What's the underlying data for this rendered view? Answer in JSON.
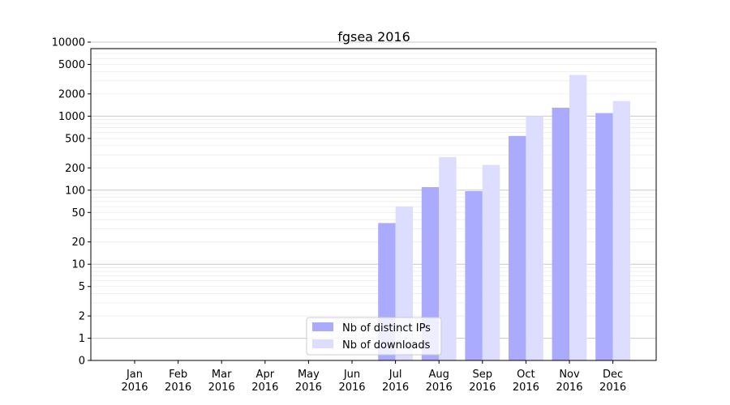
{
  "chart_data": {
    "type": "bar",
    "title": "fgsea 2016",
    "xlabel": "",
    "ylabel": "",
    "yscale": "symlog",
    "ylim": [
      0,
      15000
    ],
    "yticks": [
      0,
      1,
      2,
      5,
      10,
      20,
      50,
      100,
      200,
      500,
      1000,
      2000,
      5000,
      10000
    ],
    "categories": [
      "Jan\n2016",
      "Feb\n2016",
      "Mar\n2016",
      "Apr\n2016",
      "May\n2016",
      "Jun\n2016",
      "Jul\n2016",
      "Aug\n2016",
      "Sep\n2016",
      "Oct\n2016",
      "Nov\n2016",
      "Dec\n2016"
    ],
    "series": [
      {
        "name": "Nb of distinct IPs",
        "color": "#aaaaff",
        "values": [
          0,
          0,
          0,
          0,
          0,
          0,
          36,
          110,
          97,
          540,
          1300,
          1100
        ]
      },
      {
        "name": "Nb of downloads",
        "color": "#ddddff",
        "values": [
          0,
          0,
          0,
          0,
          0,
          0,
          60,
          280,
          220,
          1000,
          3600,
          1600
        ]
      }
    ],
    "grid": true,
    "legend_position": "bottom-center"
  }
}
